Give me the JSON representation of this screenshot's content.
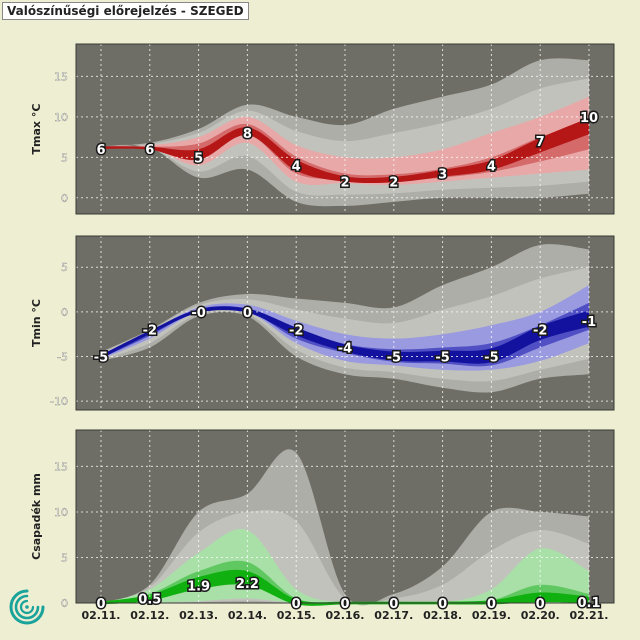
{
  "title": "Valószínűségi előrejelzés - SZEGED",
  "colors": {
    "page_bg": "#eeeed2",
    "panel_bg": "#6e6e66",
    "spread_outer": "#aeaea8",
    "spread_mid": "#c2c2bc",
    "tmax_p10": "#e8a8a8",
    "tmax_p25": "#d46a6a",
    "tmax_core": "#b51616",
    "tmin_p10": "#9a9ae0",
    "tmin_p25": "#5050c4",
    "tmin_core": "#12129e",
    "prec_p10": "#a8e0a8",
    "prec_p25": "#60c860",
    "prec_core": "#10b010",
    "logo": "#1aa39a"
  },
  "chart_data": [
    {
      "type": "area",
      "name": "tmax",
      "ylabel": "Tmax °C",
      "x": [
        "02.11.",
        "02.12.",
        "02.13.",
        "02.14.",
        "02.15.",
        "02.16.",
        "02.17.",
        "02.18.",
        "02.19.",
        "02.20.",
        "02.21."
      ],
      "yticks": [
        0,
        5,
        10,
        15
      ],
      "ylim": [
        -2,
        19
      ],
      "grid": true,
      "min": [
        6.4,
        6.2,
        2.5,
        3.5,
        -0.5,
        -1,
        -0.5,
        0,
        0,
        0,
        0.5
      ],
      "p10": [
        6.4,
        6.2,
        4,
        6.8,
        2,
        1.8,
        1.6,
        2,
        2.5,
        3,
        3.5
      ],
      "p25": [
        6.4,
        6.2,
        4.7,
        7.8,
        3,
        2.3,
        2.1,
        2.5,
        3.2,
        4.5,
        6
      ],
      "p75": [
        6.4,
        6.3,
        6.7,
        9.1,
        5.1,
        3,
        2.9,
        3.6,
        5,
        7.5,
        9.5
      ],
      "p90": [
        6.4,
        6.5,
        7.5,
        10,
        6.5,
        5,
        5,
        6,
        8,
        10,
        12.5
      ],
      "max": [
        6.4,
        6.8,
        8.5,
        11.5,
        10,
        9,
        11,
        12.5,
        14,
        17,
        17
      ],
      "median": [
        6,
        6,
        5,
        8,
        4,
        2,
        2,
        3,
        4,
        7,
        10
      ],
      "labels": [
        "6",
        "6",
        "5",
        "8",
        "4",
        "2",
        "2",
        "3",
        "4",
        "7",
        "10"
      ]
    },
    {
      "type": "area",
      "name": "tmin",
      "ylabel": "Tmin °C",
      "x": [
        "02.11.",
        "02.12.",
        "02.13.",
        "02.14.",
        "02.15.",
        "02.16.",
        "02.17.",
        "02.18.",
        "02.19.",
        "02.20.",
        "02.21."
      ],
      "yticks": [
        -10,
        -5,
        0,
        5
      ],
      "ylim": [
        -11,
        8.5
      ],
      "grid": true,
      "min": [
        -5.5,
        -4,
        -0.5,
        -0.5,
        -5,
        -7,
        -7.5,
        -8.5,
        -9,
        -7.5,
        -7
      ],
      "p10": [
        -5.3,
        -3,
        0,
        0,
        -3.5,
        -5.5,
        -6,
        -6.5,
        -6.5,
        -5.5,
        -3.5
      ],
      "p25": [
        -5.2,
        -2.7,
        0.1,
        0.1,
        -3,
        -4.6,
        -5.6,
        -5.8,
        -6,
        -4,
        -2
      ],
      "p75": [
        -5,
        -2.5,
        0.3,
        0.4,
        -1.8,
        -3.6,
        -4.2,
        -4,
        -3.5,
        -1.5,
        1
      ],
      "p90": [
        -4.8,
        -2.2,
        0.5,
        0.8,
        -1,
        -2.5,
        -3,
        -2.5,
        -1.5,
        0,
        3
      ],
      "max": [
        -4.5,
        -2,
        1,
        2,
        1.5,
        1,
        0.5,
        3,
        5,
        7.5,
        7
      ],
      "median": [
        -5,
        -2,
        0,
        0,
        -2,
        -4,
        -5,
        -5,
        -5,
        -2,
        -1
      ],
      "labels": [
        "-5",
        "-2",
        "-0",
        "0",
        "-2",
        "-4",
        "-5",
        "-5",
        "-5",
        "-2",
        "-1"
      ]
    },
    {
      "type": "area",
      "name": "precip",
      "ylabel": "Csapadék mm",
      "x": [
        "02.11.",
        "02.12.",
        "02.13.",
        "02.14.",
        "02.15.",
        "02.16.",
        "02.17.",
        "02.18.",
        "02.19.",
        "02.20.",
        "02.21."
      ],
      "yticks": [
        0,
        5,
        10,
        15
      ],
      "ylim": [
        0,
        19
      ],
      "grid": true,
      "min": [
        0,
        0,
        0,
        0,
        0,
        0,
        0,
        0,
        0,
        0,
        0
      ],
      "p10": [
        0,
        0,
        0.2,
        0.5,
        0,
        0,
        0,
        0,
        0,
        0,
        0
      ],
      "p25": [
        0,
        0.3,
        1.5,
        2,
        0,
        0,
        0,
        0,
        0,
        0.5,
        0.2
      ],
      "p75": [
        0,
        1,
        3.5,
        4.5,
        0.5,
        0,
        0,
        0,
        0.3,
        2,
        1
      ],
      "p90": [
        0,
        1.5,
        5.5,
        8,
        1.5,
        0,
        0,
        0,
        1.5,
        6,
        3.5
      ],
      "max": [
        0,
        2,
        10,
        12,
        16.5,
        1,
        1,
        4,
        10,
        10,
        9.5
      ],
      "median": [
        0,
        0.5,
        1.9,
        2.2,
        0,
        0,
        0,
        0,
        0,
        0,
        0.1
      ],
      "labels": [
        "0",
        "0.5",
        "1.9",
        "2.2",
        "0",
        "0",
        "0",
        "0",
        "0",
        "0",
        "0.1"
      ]
    }
  ]
}
